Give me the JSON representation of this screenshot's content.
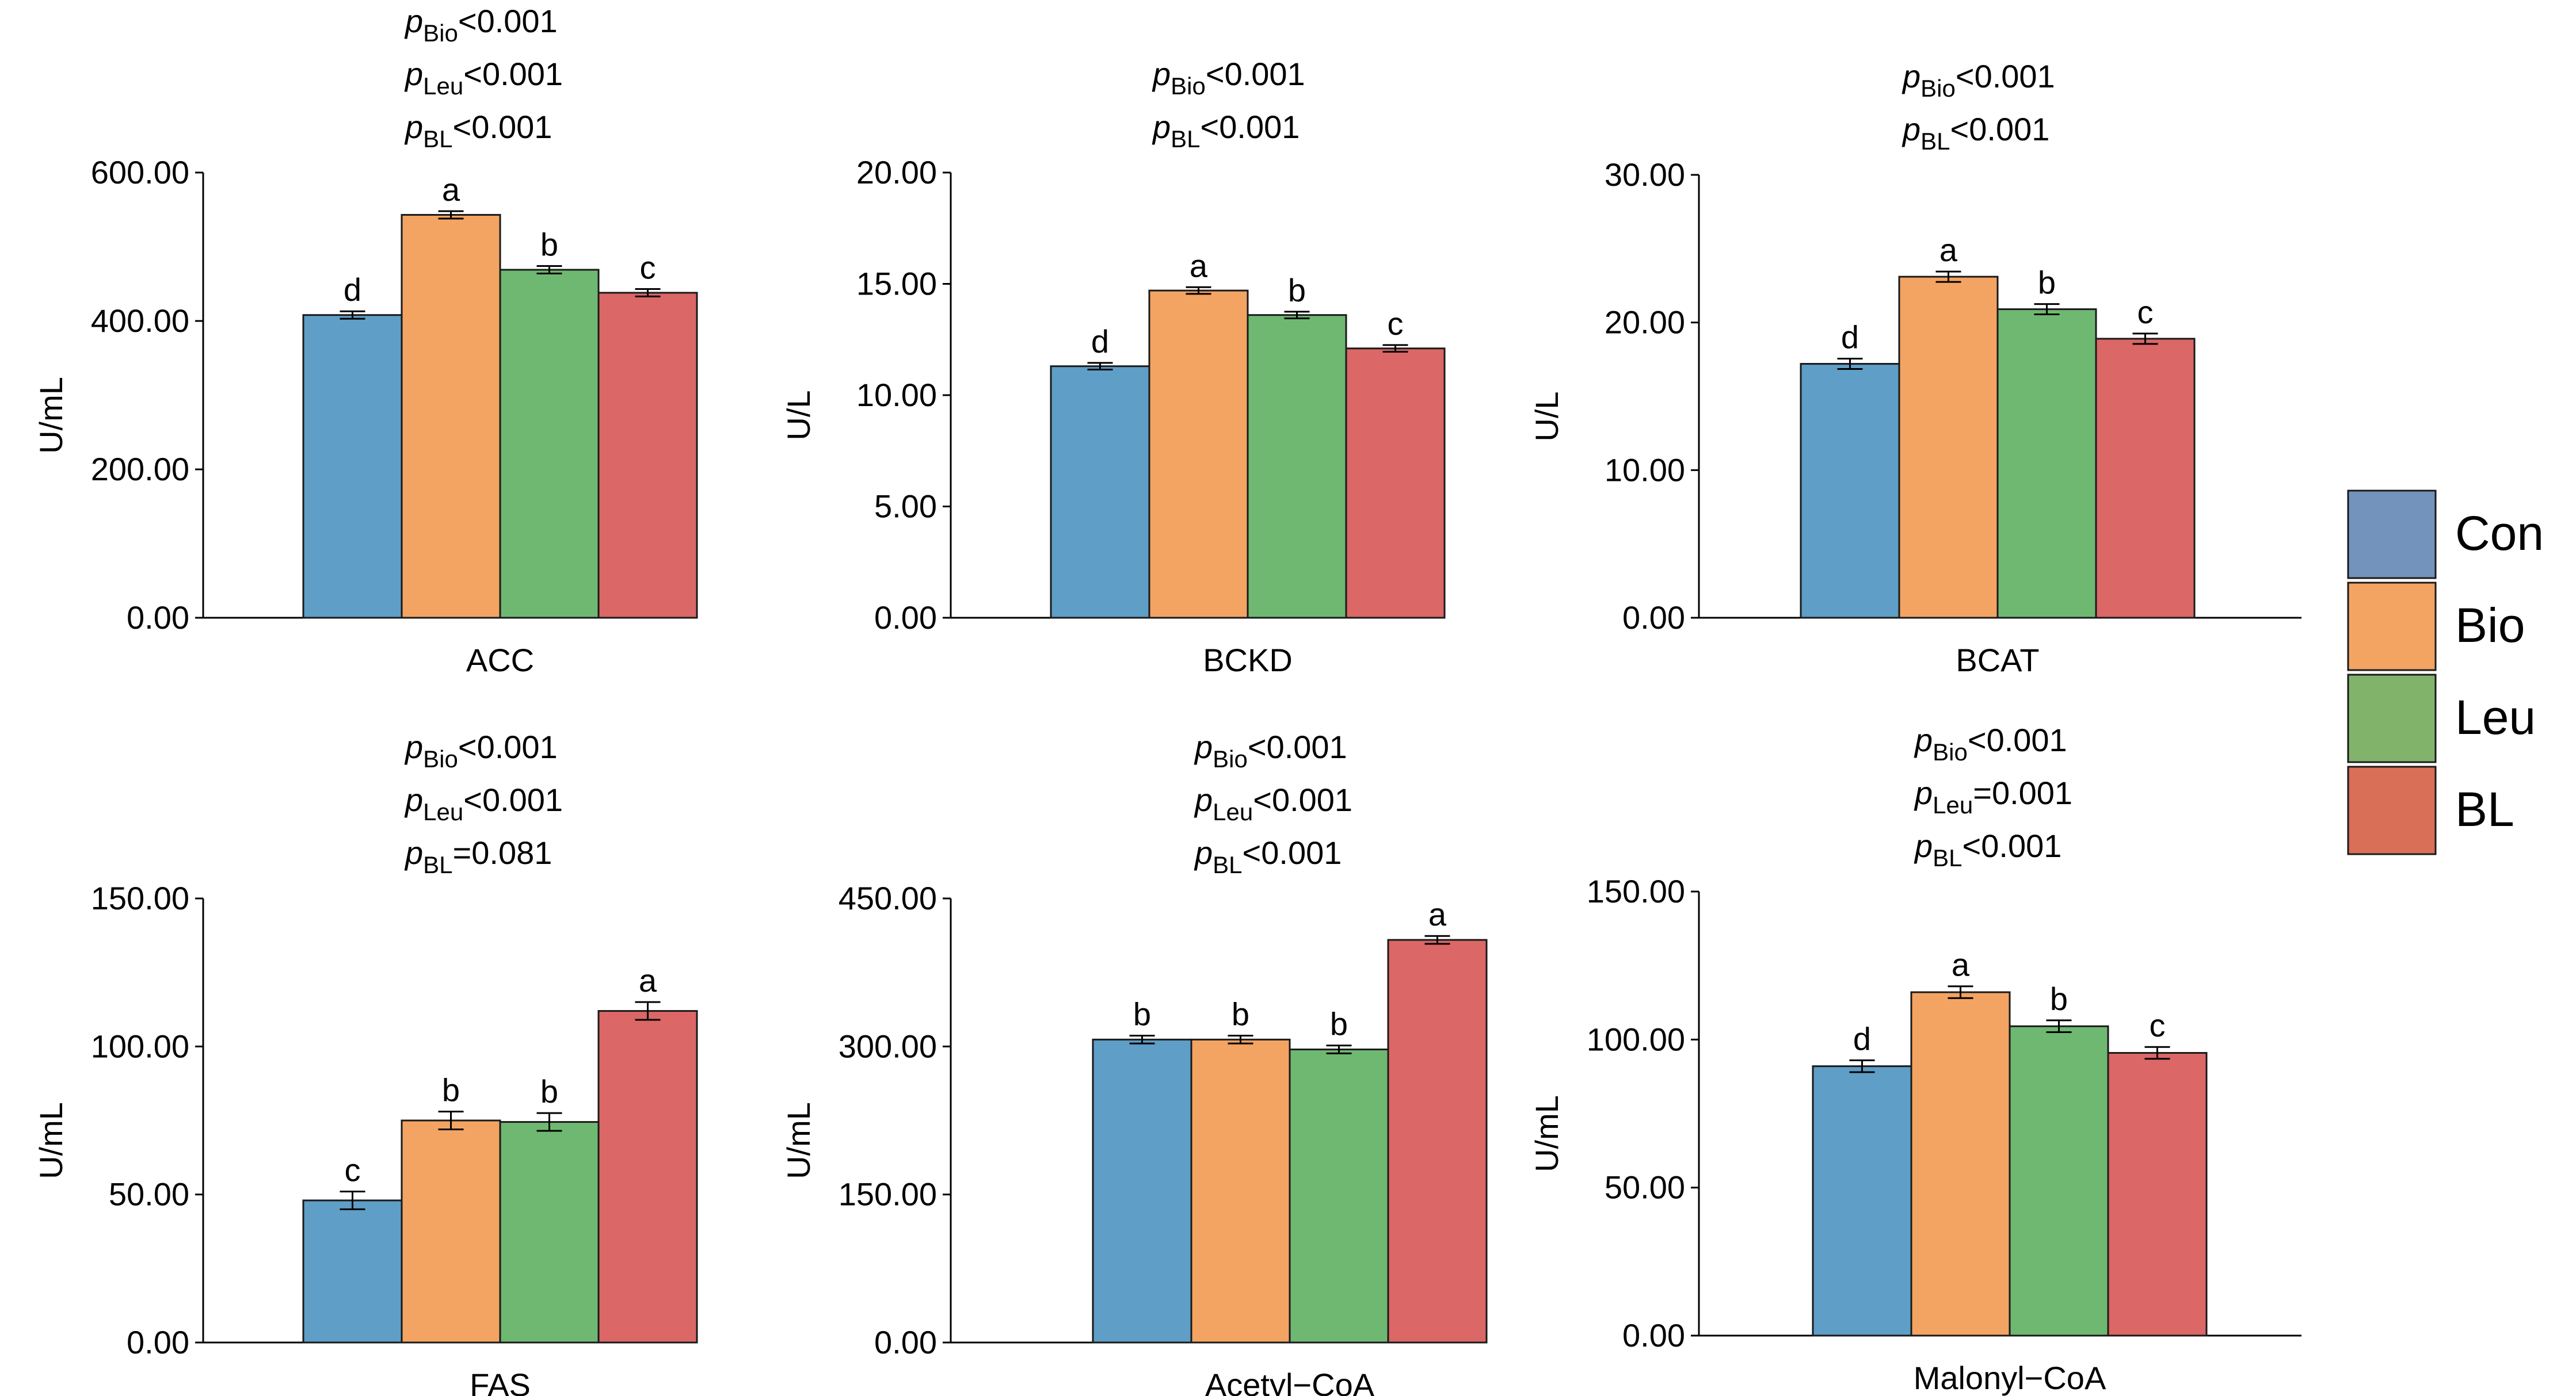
{
  "legend": [
    {
      "label": "Con",
      "color": "#7393bd"
    },
    {
      "label": "Bio",
      "color": "#f3a462"
    },
    {
      "label": "Leu",
      "color": "#82b36b"
    },
    {
      "label": "BL",
      "color": "#d96f56"
    }
  ],
  "group_colors": [
    "#5f9ec6",
    "#f3a462",
    "#6fb872",
    "#db6766"
  ],
  "chart_data": [
    {
      "type": "bar",
      "title": "ACC",
      "ylabel": "U/mL",
      "ylim": [
        0,
        600
      ],
      "yticks": [
        0,
        200,
        400,
        600
      ],
      "yticklabels": [
        "0.00",
        "200.00",
        "400.00",
        "600.00"
      ],
      "categories": [
        "Con",
        "Bio",
        "Leu",
        "BL"
      ],
      "values": [
        408,
        543,
        469,
        438
      ],
      "errors": [
        5,
        5,
        5,
        5
      ],
      "letters": [
        "d",
        "a",
        "b",
        "c"
      ],
      "pvalues": [
        {
          "sub": "Bio",
          "rel": "<0.001"
        },
        {
          "sub": "Leu",
          "rel": "<0.001"
        },
        {
          "sub": "BL",
          "rel": "<0.001"
        }
      ]
    },
    {
      "type": "bar",
      "title": "BCKD",
      "ylabel": "U/L",
      "ylim": [
        0,
        20
      ],
      "yticks": [
        0,
        5,
        10,
        15,
        20
      ],
      "yticklabels": [
        "0.00",
        "5.00",
        "10.00",
        "15.00",
        "20.00"
      ],
      "categories": [
        "Con",
        "Bio",
        "Leu",
        "BL"
      ],
      "values": [
        11.3,
        14.7,
        13.6,
        12.1
      ],
      "errors": [
        0.15,
        0.15,
        0.15,
        0.15
      ],
      "letters": [
        "d",
        "a",
        "b",
        "c"
      ],
      "pvalues": [
        {
          "sub": "Bio",
          "rel": "<0.001"
        },
        {
          "sub": "BL",
          "rel": "<0.001"
        }
      ]
    },
    {
      "type": "bar",
      "title": "BCAT",
      "ylabel": "U/L",
      "ylim": [
        0,
        30
      ],
      "yticks": [
        0,
        10,
        20,
        30
      ],
      "yticklabels": [
        "0.00",
        "10.00",
        "20.00",
        "30.00"
      ],
      "categories": [
        "Con",
        "Bio",
        "Leu",
        "BL"
      ],
      "values": [
        17.2,
        23.1,
        20.9,
        18.9
      ],
      "errors": [
        0.35,
        0.35,
        0.35,
        0.35
      ],
      "letters": [
        "d",
        "a",
        "b",
        "c"
      ],
      "pvalues": [
        {
          "sub": "Bio",
          "rel": "<0.001"
        },
        {
          "sub": "BL",
          "rel": "<0.001"
        }
      ]
    },
    {
      "type": "bar",
      "title": "FAS",
      "ylabel": "U/mL",
      "ylim": [
        0,
        150
      ],
      "yticks": [
        0,
        50,
        100,
        150
      ],
      "yticklabels": [
        "0.00",
        "50.00",
        "100.00",
        "150.00"
      ],
      "categories": [
        "Con",
        "Bio",
        "Leu",
        "BL"
      ],
      "values": [
        48,
        75,
        74.5,
        112
      ],
      "errors": [
        3,
        3,
        3,
        3
      ],
      "letters": [
        "c",
        "b",
        "b",
        "a"
      ],
      "pvalues": [
        {
          "sub": "Bio",
          "rel": "<0.001"
        },
        {
          "sub": "Leu",
          "rel": "<0.001"
        },
        {
          "sub": "BL",
          "rel": "=0.081"
        }
      ]
    },
    {
      "type": "bar",
      "title": "Acetyl−CoA",
      "ylabel": "U/mL",
      "ylim": [
        0,
        450
      ],
      "yticks": [
        0,
        150,
        300,
        450
      ],
      "yticklabels": [
        "0.00",
        "150.00",
        "300.00",
        "450.00"
      ],
      "categories": [
        "Con",
        "Bio",
        "Leu",
        "BL"
      ],
      "values": [
        307,
        307,
        297,
        408
      ],
      "errors": [
        4,
        4,
        4,
        4
      ],
      "letters": [
        "b",
        "b",
        "b",
        "a"
      ],
      "pvalues": [
        {
          "sub": "Bio",
          "rel": "<0.001"
        },
        {
          "sub": "Leu",
          "rel": "<0.001"
        },
        {
          "sub": "BL",
          "rel": "<0.001"
        }
      ]
    },
    {
      "type": "bar",
      "title": "Malonyl−CoA",
      "ylabel": "U/mL",
      "ylim": [
        0,
        150
      ],
      "yticks": [
        0,
        50,
        100,
        150
      ],
      "yticklabels": [
        "0.00",
        "50.00",
        "100.00",
        "150.00"
      ],
      "categories": [
        "Con",
        "Bio",
        "Leu",
        "BL"
      ],
      "values": [
        91,
        116,
        104.5,
        95.5
      ],
      "errors": [
        2,
        2,
        2,
        2
      ],
      "letters": [
        "d",
        "a",
        "b",
        "c"
      ],
      "pvalues": [
        {
          "sub": "Bio",
          "rel": "<0.001"
        },
        {
          "sub": "Leu",
          "rel": "=0.001"
        },
        {
          "sub": "BL",
          "rel": "<0.001"
        }
      ]
    }
  ]
}
